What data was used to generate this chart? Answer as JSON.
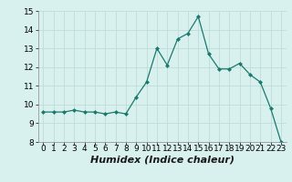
{
  "x": [
    0,
    1,
    2,
    3,
    4,
    5,
    6,
    7,
    8,
    9,
    10,
    11,
    12,
    13,
    14,
    15,
    16,
    17,
    18,
    19,
    20,
    21,
    22,
    23
  ],
  "y": [
    9.6,
    9.6,
    9.6,
    9.7,
    9.6,
    9.6,
    9.5,
    9.6,
    9.5,
    10.4,
    11.2,
    13.0,
    12.1,
    13.5,
    13.8,
    14.7,
    12.7,
    11.9,
    11.9,
    12.2,
    11.6,
    11.2,
    9.8,
    8.0
  ],
  "line_color": "#1a7a6e",
  "marker": "D",
  "marker_size": 2.0,
  "bg_color": "#d8f0ee",
  "grid_color": "#c0dcd8",
  "xlabel": "Humidex (Indice chaleur)",
  "ylim": [
    8,
    15
  ],
  "xlim": [
    -0.5,
    23.5
  ],
  "yticks": [
    8,
    9,
    10,
    11,
    12,
    13,
    14,
    15
  ],
  "xticks": [
    0,
    1,
    2,
    3,
    4,
    5,
    6,
    7,
    8,
    9,
    10,
    11,
    12,
    13,
    14,
    15,
    16,
    17,
    18,
    19,
    20,
    21,
    22,
    23
  ],
  "tick_fontsize": 6.5,
  "xlabel_fontsize": 8.0
}
